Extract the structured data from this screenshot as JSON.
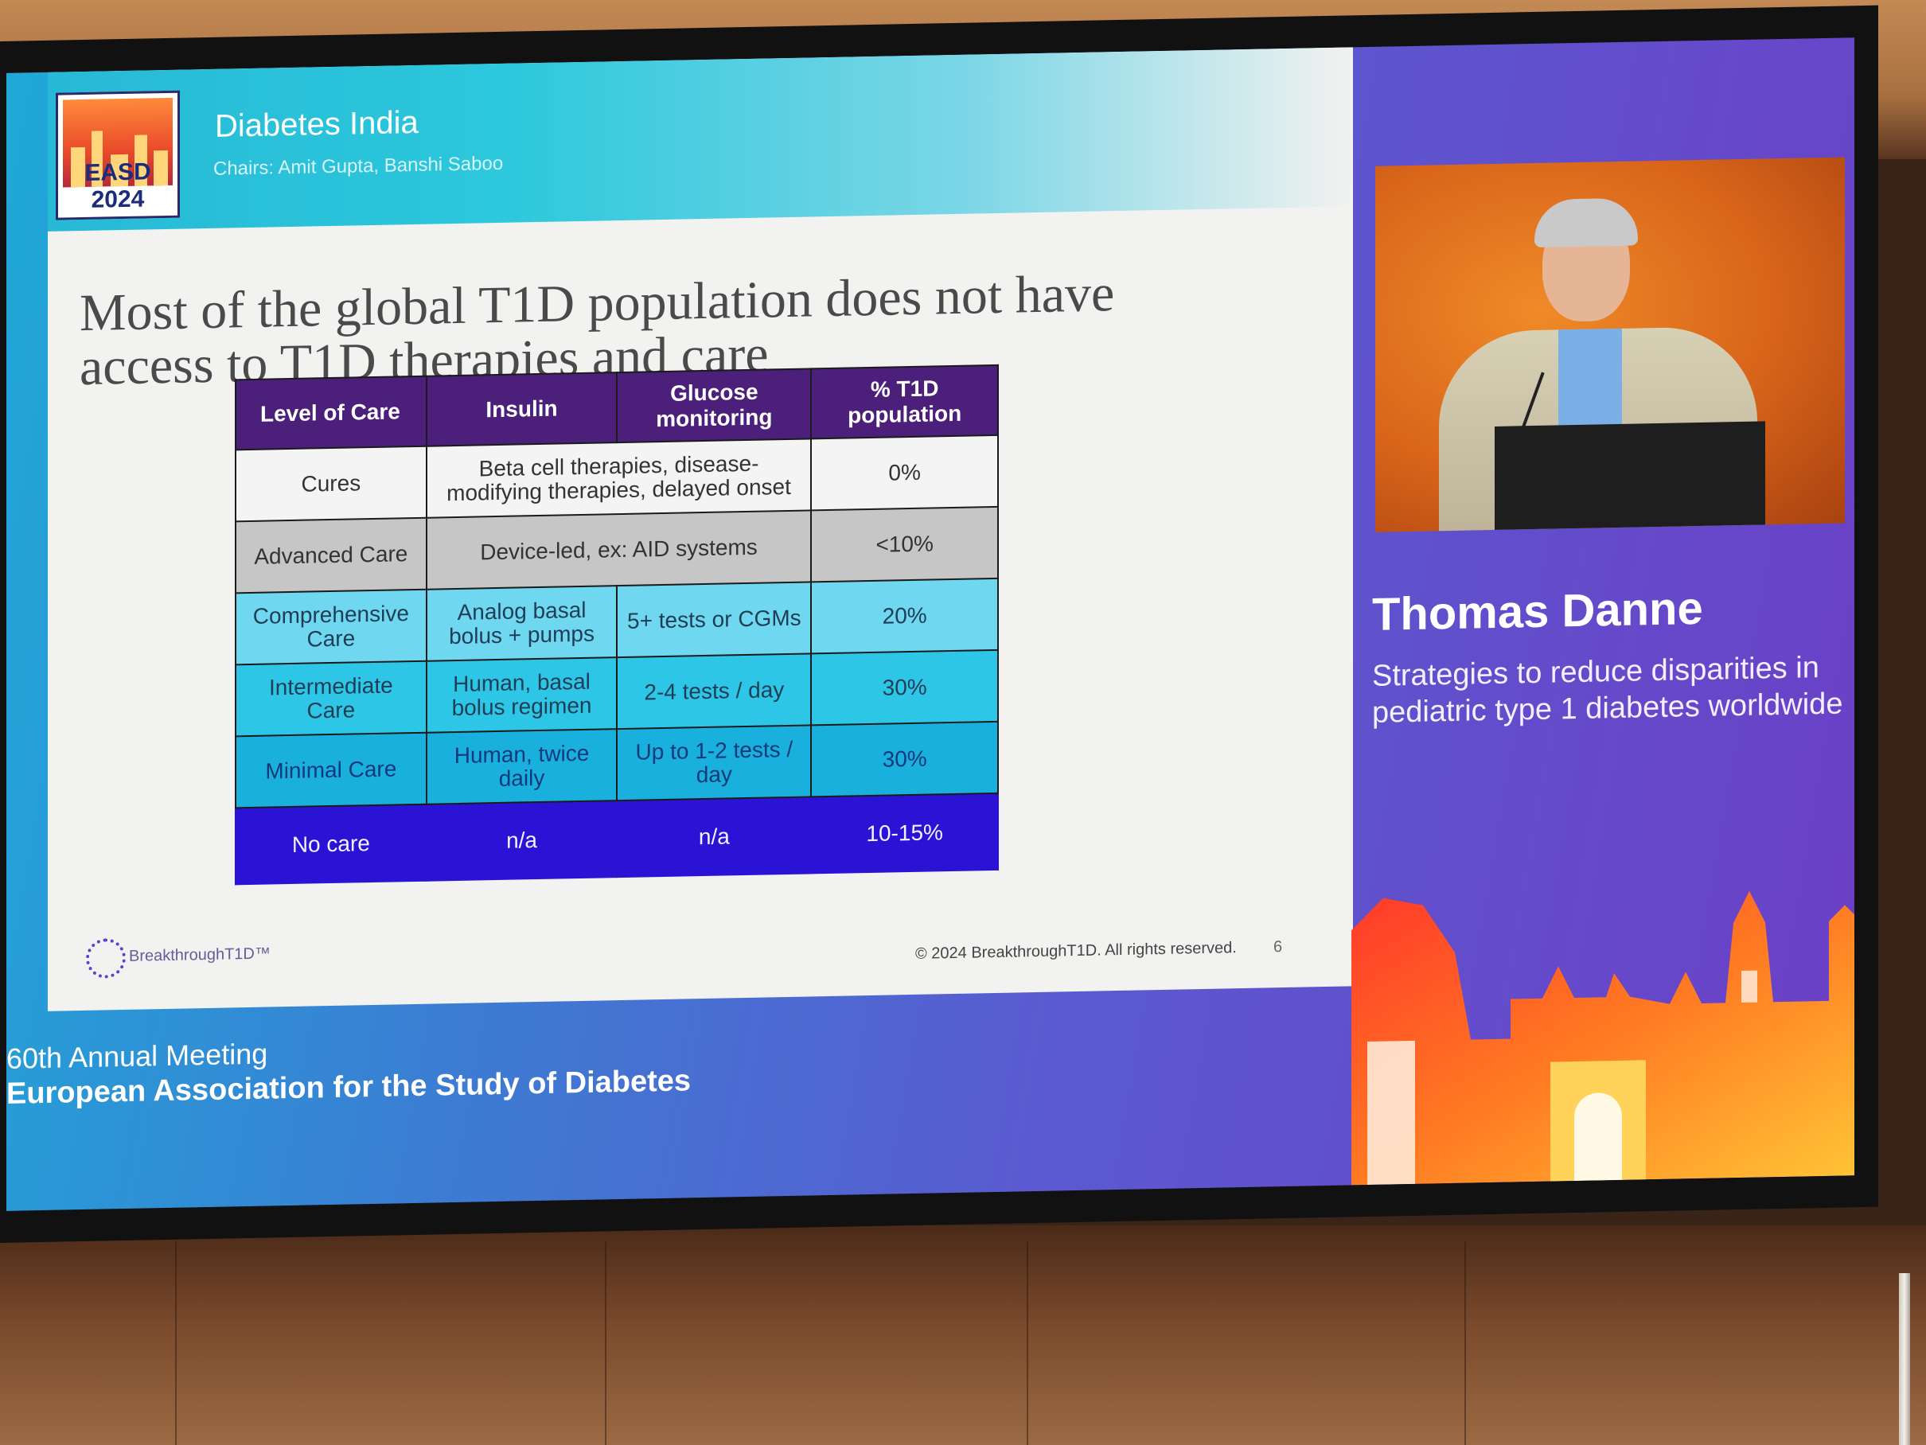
{
  "header": {
    "logo_text": "EASD 2024",
    "session_title": "Diabetes India",
    "chairs": "Chairs: Amit Gupta, Banshi Saboo"
  },
  "slide": {
    "title_line1": "Most of the global T1D population does not have",
    "title_line2": "access to T1D therapies and care",
    "table": {
      "headers": [
        "Level of Care",
        "Insulin",
        "Glucose monitoring",
        "% T1D population"
      ],
      "rows": [
        {
          "level": "Cures",
          "insulin": "Beta cell therapies, disease-modifying therapies, delayed onset",
          "glucose": "",
          "pct": "0%"
        },
        {
          "level": "Advanced Care",
          "insulin": "Device-led, ex: AID systems",
          "glucose": "",
          "pct": "<10%"
        },
        {
          "level": "Comprehensive Care",
          "insulin": "Analog basal bolus + pumps",
          "glucose": "5+ tests or CGMs",
          "pct": "20%"
        },
        {
          "level": "Intermediate Care",
          "insulin": "Human, basal bolus regimen",
          "glucose": "2-4 tests / day",
          "pct": "30%"
        },
        {
          "level": "Minimal Care",
          "insulin": "Human, twice daily",
          "glucose": "Up to 1-2 tests / day",
          "pct": "30%"
        },
        {
          "level": "No care",
          "insulin": "n/a",
          "glucose": "n/a",
          "pct": "10-15%"
        }
      ]
    },
    "footer_logo": "BreakthroughT1D™",
    "copyright": "© 2024 BreakthroughT1D. All rights reserved.",
    "page_number": "6"
  },
  "meeting": {
    "line1": "60th Annual Meeting",
    "line2": "European Association for the Study of Diabetes"
  },
  "speaker": {
    "name": "Thomas Danne",
    "talk_title": "Strategies to reduce disparities in pediatric type 1 diabetes worldwide"
  },
  "colors": {
    "header_purple": "#4b1f7a",
    "no_care_blue": "#2b13d6",
    "panel_purple": "#6b3fc6"
  }
}
